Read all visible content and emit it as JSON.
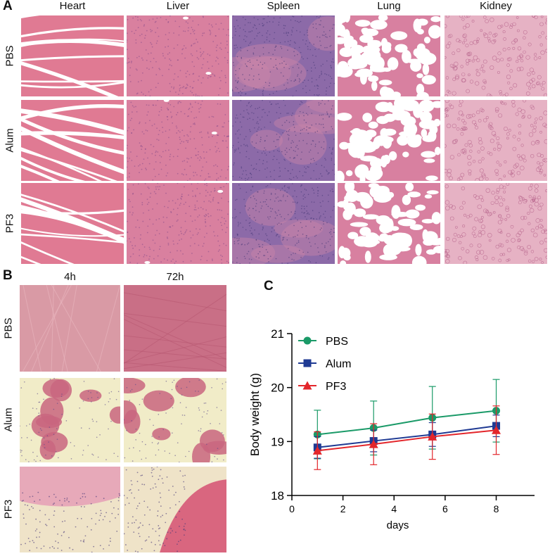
{
  "panels": {
    "a": {
      "letter": "A",
      "columns": [
        "Heart",
        "Liver",
        "Spleen",
        "Lung",
        "Kidney"
      ],
      "rows": [
        "PBS",
        "Alum",
        "PF3"
      ]
    },
    "b": {
      "letter": "B",
      "columns": [
        "4h",
        "72h"
      ],
      "rows": [
        "PBS",
        "Alum",
        "PF3"
      ]
    },
    "c": {
      "letter": "C"
    }
  },
  "tissue_colors": {
    "heart": "#e07a93",
    "liver": "#d9809f",
    "spleen": "#8c6aa8",
    "lung": "#f3d3df",
    "kidney": "#e6b2c4",
    "muscle_pbs": "#d99aa5",
    "alum_bg": "#f1ecc8"
  },
  "chart_data": {
    "type": "line",
    "xlabel": "days",
    "ylabel": "Body weight (g)",
    "xlim": [
      0,
      9.5
    ],
    "ylim": [
      18,
      21
    ],
    "xticks": [
      0,
      2,
      4,
      6,
      8
    ],
    "yticks": [
      18,
      19,
      20,
      21
    ],
    "legend_position": "top-left",
    "series": [
      {
        "name": "PBS",
        "color": "#1a9a68",
        "marker": "circle",
        "x": [
          1,
          3.2,
          5.5,
          8
        ],
        "y": [
          19.13,
          19.25,
          19.44,
          19.57
        ],
        "err": [
          0.45,
          0.5,
          0.58,
          0.58
        ]
      },
      {
        "name": "Alum",
        "color": "#1f3a93",
        "marker": "square",
        "x": [
          1,
          3.2,
          5.5,
          8
        ],
        "y": [
          18.89,
          19.01,
          19.13,
          19.29
        ],
        "err": [
          0.2,
          0.2,
          0.22,
          0.2
        ]
      },
      {
        "name": "PF3",
        "color": "#e3262b",
        "marker": "triangle",
        "x": [
          1,
          3.2,
          5.5,
          8
        ],
        "y": [
          18.83,
          18.95,
          19.09,
          19.21
        ],
        "err": [
          0.35,
          0.38,
          0.42,
          0.45
        ]
      }
    ]
  }
}
